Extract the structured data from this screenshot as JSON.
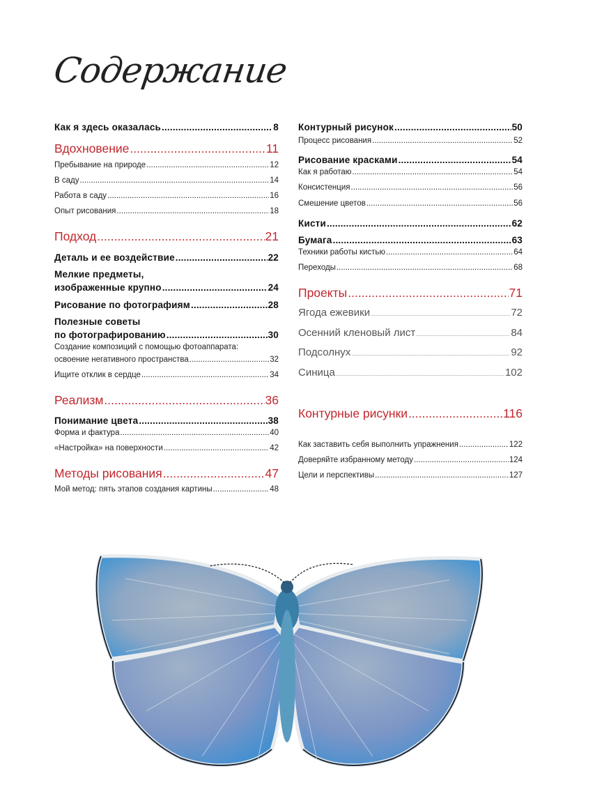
{
  "title": "Содержание",
  "colors": {
    "accent_red": "#c1272d",
    "text": "#1a1a1a",
    "wing_blue": "#4aa3d8"
  },
  "left_column": [
    {
      "style": "bold",
      "label": "Как я здесь оказалась",
      "page": "8"
    },
    {
      "style": "red",
      "label": "Вдохновение",
      "page": "11"
    },
    {
      "style": "sub",
      "label": "Пребывание на природе",
      "page": "12"
    },
    {
      "style": "sub",
      "label": "В саду",
      "page": "14"
    },
    {
      "style": "sub",
      "label": "Работа в саду",
      "page": "16"
    },
    {
      "style": "sub",
      "label": "Опыт рисования",
      "page": "18"
    },
    {
      "style": "red",
      "label": "Подход",
      "page": "21"
    },
    {
      "style": "bold",
      "label": "Деталь и ее воздействие",
      "page": "22"
    },
    {
      "style": "bold",
      "label_first_line": "Мелкие предметы,",
      "label": "изображенные крупно",
      "page": "24"
    },
    {
      "style": "bold",
      "label": "Рисование по фотографиям",
      "page": "28"
    },
    {
      "style": "bold",
      "label_first_line": "Полезные советы",
      "label": "по фотографированию",
      "page": "30"
    },
    {
      "style": "sub",
      "label_first_line": "Создание композиций с помощью фотоаппарата:",
      "label": "освоение негативного пространства",
      "page": "32"
    },
    {
      "style": "sub",
      "label": "Ищите отклик в сердце",
      "page": "34"
    },
    {
      "style": "red",
      "label": "Реализм",
      "page": "36"
    },
    {
      "style": "bold",
      "label": "Понимание цвета",
      "page": "38"
    },
    {
      "style": "sub",
      "label": "Форма и фактура",
      "page": "40"
    },
    {
      "style": "sub",
      "label": "«Настройка» на поверхности",
      "page": "42"
    },
    {
      "style": "red",
      "label": "Методы рисования",
      "page": "47"
    },
    {
      "style": "sub",
      "label": "Мой метод: пять этапов создания картины",
      "page": "48"
    }
  ],
  "right_column": [
    {
      "style": "bold",
      "label": "Контурный рисунок",
      "page": "50"
    },
    {
      "style": "sub",
      "label": "Процесс рисования",
      "page": "52"
    },
    {
      "style": "bold",
      "label": "Рисование красками",
      "page": "54"
    },
    {
      "style": "sub",
      "label": "Как я работаю",
      "page": "54"
    },
    {
      "style": "sub",
      "label": "Консистенция",
      "page": "56"
    },
    {
      "style": "sub",
      "label": "Смешение цветов",
      "page": "56"
    },
    {
      "style": "bold",
      "label": "Кисти",
      "page": "62"
    },
    {
      "style": "bold",
      "label": "Бумага",
      "page": "63"
    },
    {
      "style": "sub",
      "label": "Техники работы кистью",
      "page": "64"
    },
    {
      "style": "sub",
      "label": "Переходы",
      "page": "68"
    },
    {
      "style": "red",
      "label": "Проекты",
      "page": "71"
    },
    {
      "style": "light",
      "label": "Ягода ежевики",
      "page": "72"
    },
    {
      "style": "light",
      "label": "Осенний кленовый лист",
      "page": "84"
    },
    {
      "style": "light",
      "label": "Подсолнух",
      "page": "92"
    },
    {
      "style": "light",
      "label": "Синица",
      "page": "102"
    },
    {
      "style": "red",
      "label": "Контурные рисунки",
      "page": "116"
    },
    {
      "style": "sub",
      "label": "Как заставить себя выполнить упражнения",
      "page": "122"
    },
    {
      "style": "sub",
      "label": "Доверяйте избранному методу",
      "page": "124"
    },
    {
      "style": "sub",
      "label": "Цели и перспективы",
      "page": "127"
    }
  ],
  "illustration": {
    "icon": "butterfly-illustration"
  }
}
